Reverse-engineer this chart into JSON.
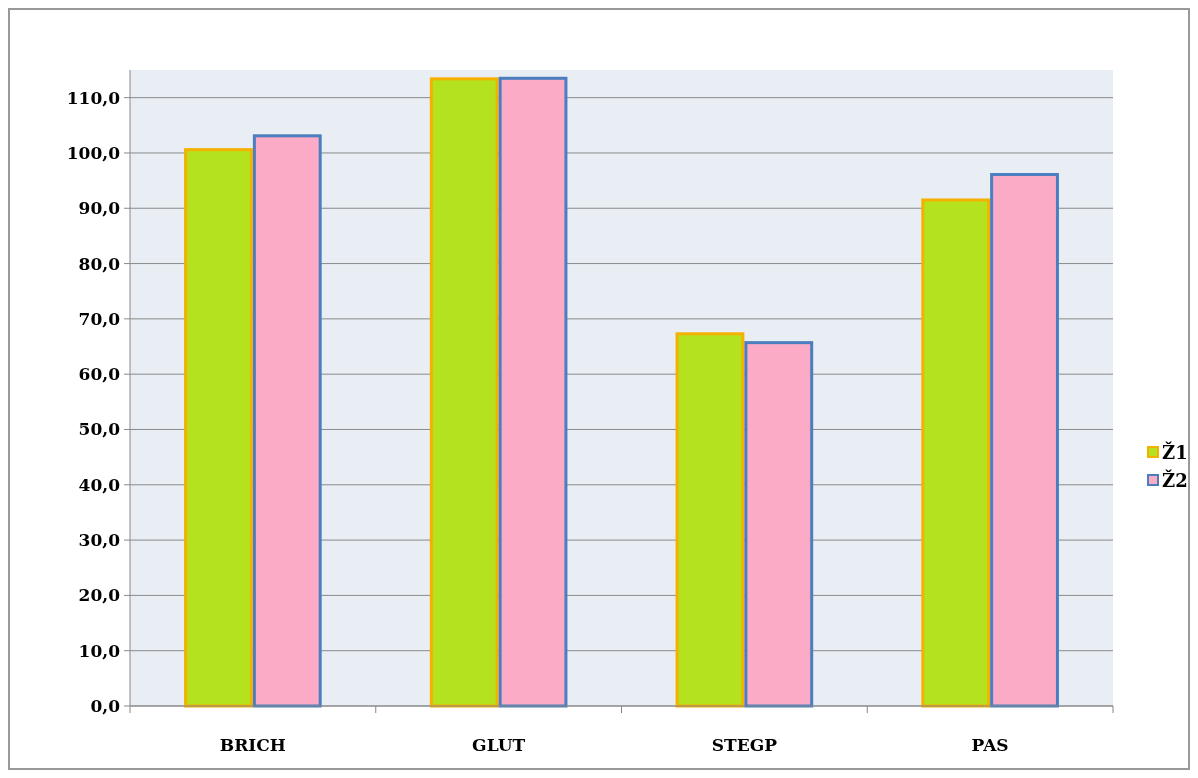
{
  "chart_data": {
    "type": "bar",
    "categories": [
      "BRICH",
      "GLUT",
      "STEGP",
      "PAS"
    ],
    "series": [
      {
        "name": "Ž1",
        "color": "#b5e21e",
        "values": [
          100.6,
          113.4,
          67.3,
          91.5
        ]
      },
      {
        "name": "Ž2",
        "color": "#fcabc7",
        "values": [
          103.1,
          113.5,
          65.7,
          96.1
        ]
      }
    ],
    "ylim": [
      0,
      115
    ],
    "yticks": [
      {
        "value": 0,
        "label": "0,0"
      },
      {
        "value": 10,
        "label": "10,0"
      },
      {
        "value": 20,
        "label": "20,0"
      },
      {
        "value": 30,
        "label": "30,0"
      },
      {
        "value": 40,
        "label": "40,0"
      },
      {
        "value": 50,
        "label": "50,0"
      },
      {
        "value": 60,
        "label": "60,0"
      },
      {
        "value": 70,
        "label": "70,0"
      },
      {
        "value": 80,
        "label": "80,0"
      },
      {
        "value": 90,
        "label": "90,0"
      },
      {
        "value": 100,
        "label": "100,0"
      },
      {
        "value": 110,
        "label": "110,0"
      }
    ],
    "grid": "y",
    "legend": "right"
  }
}
